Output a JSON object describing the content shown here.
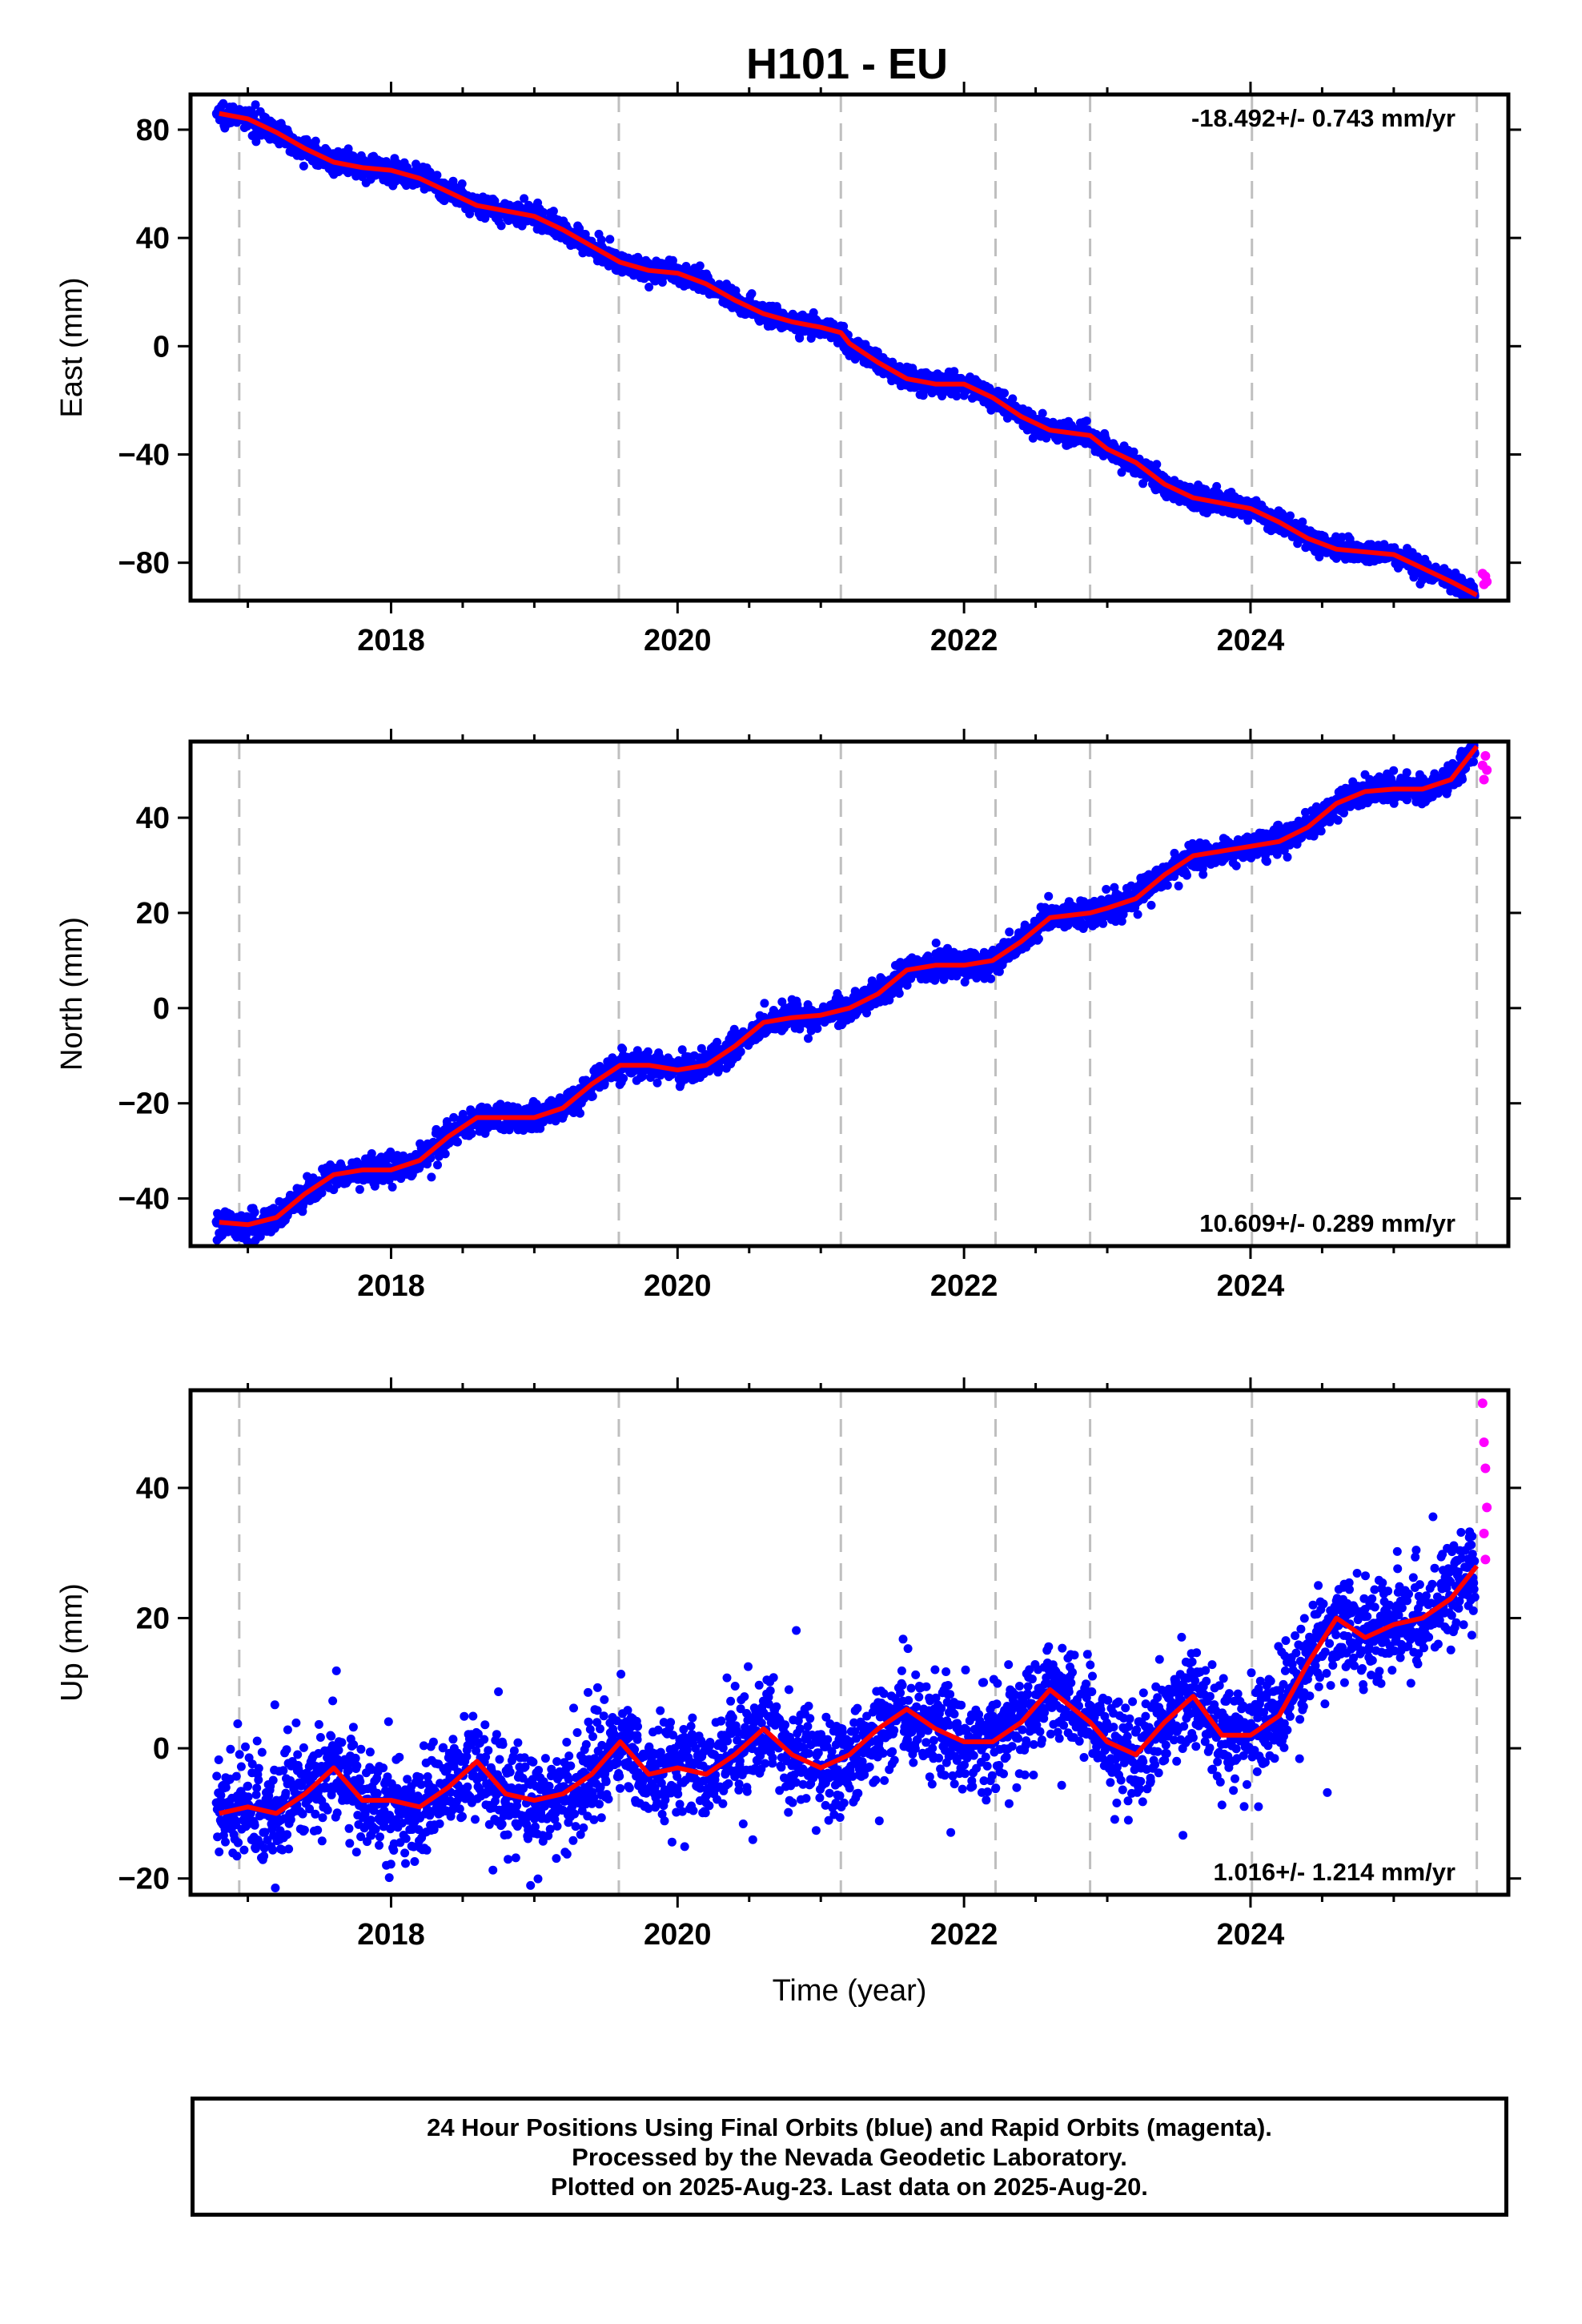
{
  "colors": {
    "final": "#0000ff",
    "rapid": "#ff00ff",
    "model": "#ff0000",
    "equipment_line": "#bfbfbf"
  },
  "chart_data": {
    "type": "scatter",
    "title": "H101 - EU",
    "xlabel": "Time (year)",
    "xlim": [
      2016.6,
      2025.8
    ],
    "x_ticks": [
      2018,
      2020,
      2022,
      2024
    ],
    "x_minor_ticks": [
      2017,
      2018.5,
      2019,
      2020.5,
      2021,
      2022.5,
      2023,
      2024.5,
      2025
    ],
    "equipment_changes": [
      2016.94,
      2019.59,
      2021.14,
      2022.22,
      2022.88,
      2024.01,
      2025.58
    ],
    "legend": "none",
    "grid": false,
    "panels": [
      {
        "key": "east",
        "ylabel": "East (mm)",
        "ylim": [
          -94,
          93
        ],
        "y_ticks": [
          80,
          40,
          0,
          -40,
          -80
        ],
        "y_tick_labels": [
          "80",
          "40",
          "0",
          "−40",
          "−80"
        ],
        "rate": "-18.492+/- 0.743 mm/yr",
        "rate_position": "top-right",
        "model_line": {
          "name": "",
          "x": [
            2016.8,
            2017.0,
            2017.2,
            2017.4,
            2017.6,
            2017.8,
            2018.0,
            2018.2,
            2018.4,
            2018.6,
            2018.8,
            2019.0,
            2019.2,
            2019.4,
            2019.6,
            2019.8,
            2020.0,
            2020.2,
            2020.4,
            2020.6,
            2020.8,
            2021.0,
            2021.14,
            2021.2,
            2021.4,
            2021.6,
            2021.8,
            2022.0,
            2022.2,
            2022.4,
            2022.6,
            2022.88,
            2023.0,
            2023.2,
            2023.4,
            2023.6,
            2023.8,
            2024.0,
            2024.2,
            2024.4,
            2024.6,
            2024.8,
            2025.0,
            2025.2,
            2025.4,
            2025.58
          ],
          "y": [
            86,
            84,
            79,
            73,
            68,
            66,
            65,
            62,
            57,
            52,
            50,
            48,
            43,
            37,
            31,
            28,
            27,
            23,
            17,
            12,
            9,
            7,
            5,
            1,
            -6,
            -12,
            -14,
            -14,
            -19,
            -26,
            -31,
            -33,
            -38,
            -43,
            -51,
            -56,
            -58,
            -60,
            -65,
            -71,
            -75,
            -76,
            -77,
            -82,
            -87,
            -92
          ]
        },
        "rapid_points": {
          "x": [
            2025.62,
            2025.63,
            2025.64,
            2025.65
          ],
          "y": [
            -84,
            -88,
            -85,
            -87
          ]
        }
      },
      {
        "key": "north",
        "ylabel": "North (mm)",
        "ylim": [
          -50,
          56
        ],
        "y_ticks": [
          40,
          20,
          0,
          -20,
          -40
        ],
        "y_tick_labels": [
          "40",
          "20",
          "0",
          "−20",
          "−40"
        ],
        "rate": "10.609+/- 0.289 mm/yr",
        "rate_position": "bottom-right",
        "model_line": {
          "name": "",
          "x": [
            2016.8,
            2017.0,
            2017.2,
            2017.4,
            2017.6,
            2017.8,
            2018.0,
            2018.2,
            2018.4,
            2018.6,
            2018.8,
            2019.0,
            2019.2,
            2019.4,
            2019.6,
            2019.8,
            2020.0,
            2020.2,
            2020.4,
            2020.6,
            2020.8,
            2021.0,
            2021.2,
            2021.4,
            2021.6,
            2021.8,
            2022.0,
            2022.2,
            2022.4,
            2022.6,
            2022.88,
            2023.0,
            2023.2,
            2023.4,
            2023.6,
            2023.8,
            2024.0,
            2024.2,
            2024.4,
            2024.6,
            2024.8,
            2025.0,
            2025.2,
            2025.4,
            2025.58
          ],
          "y": [
            -45,
            -45.5,
            -44,
            -39,
            -35,
            -34,
            -34,
            -32,
            -27,
            -23,
            -23,
            -23,
            -21,
            -16,
            -12,
            -12,
            -13,
            -12,
            -8,
            -3,
            -2,
            -1.5,
            0,
            3,
            8,
            9,
            9,
            10,
            14,
            19,
            20,
            21,
            23,
            28,
            32,
            33,
            34,
            35,
            38,
            43,
            45.5,
            46,
            46,
            48,
            55
          ]
        },
        "rapid_points": {
          "x": [
            2025.62,
            2025.63,
            2025.64,
            2025.65
          ],
          "y": [
            51,
            48,
            53,
            50
          ]
        }
      },
      {
        "key": "up",
        "ylabel": "Up (mm)",
        "ylim": [
          -22.5,
          55
        ],
        "y_ticks": [
          40,
          20,
          0,
          -20
        ],
        "y_tick_labels": [
          "40",
          "20",
          "0",
          "−20"
        ],
        "rate": "1.016+/- 1.214 mm/yr",
        "rate_position": "bottom-right",
        "model_line": {
          "name": "",
          "x": [
            2016.8,
            2017.0,
            2017.2,
            2017.4,
            2017.6,
            2017.8,
            2018.0,
            2018.2,
            2018.4,
            2018.6,
            2018.8,
            2019.0,
            2019.2,
            2019.4,
            2019.6,
            2019.8,
            2020.0,
            2020.2,
            2020.4,
            2020.6,
            2020.8,
            2021.0,
            2021.2,
            2021.4,
            2021.6,
            2021.8,
            2022.0,
            2022.2,
            2022.4,
            2022.6,
            2022.88,
            2023.0,
            2023.2,
            2023.4,
            2023.6,
            2023.8,
            2024.0,
            2024.2,
            2024.4,
            2024.6,
            2024.8,
            2025.0,
            2025.2,
            2025.4,
            2025.58
          ],
          "y": [
            -10,
            -9,
            -10,
            -7,
            -3,
            -8,
            -8,
            -9,
            -6,
            -2,
            -7,
            -8,
            -7,
            -4,
            1,
            -4,
            -3,
            -4,
            -1,
            3,
            -1,
            -3,
            -1,
            3,
            6,
            3,
            1,
            1,
            4,
            9,
            4,
            1,
            -1,
            4,
            8,
            2,
            2,
            5,
            13,
            20,
            17,
            19,
            20,
            23,
            28
          ]
        },
        "rapid_points": {
          "x": [
            2025.62,
            2025.63,
            2025.64,
            2025.65,
            2025.63,
            2025.64
          ],
          "y": [
            53,
            47,
            43,
            37,
            33,
            29
          ]
        }
      }
    ]
  },
  "footer": {
    "line1": "24 Hour Positions Using Final Orbits (blue) and Rapid Orbits (magenta).",
    "line2": "Processed by the Nevada Geodetic Laboratory.",
    "line3": "Plotted on 2025-Aug-23. Last data on 2025-Aug-20."
  }
}
